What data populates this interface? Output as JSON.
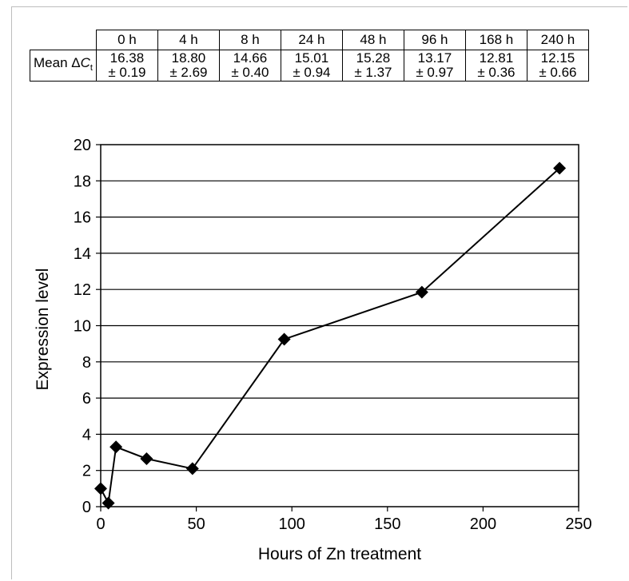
{
  "table": {
    "row_label_text": "Mean Δ",
    "row_label_var": "C",
    "row_label_sub": "t",
    "headers": [
      "0 h",
      "4 h",
      "8 h",
      "24 h",
      "48 h",
      "96 h",
      "168 h",
      "240 h"
    ],
    "means": [
      "16.38",
      "18.80",
      "14.66",
      "15.01",
      "15.28",
      "13.17",
      "12.81",
      "12.15"
    ],
    "sds": [
      "± 0.19",
      "± 2.69",
      "± 0.40",
      "± 0.94",
      "± 1.37",
      "± 0.97",
      "± 0.36",
      "± 0.66"
    ]
  },
  "chart_data": {
    "type": "line",
    "xlabel": "Hours of Zn treatment",
    "ylabel": "Expression level",
    "xlim": [
      0,
      250
    ],
    "ylim": [
      0,
      20
    ],
    "xticks": [
      0,
      50,
      100,
      150,
      200,
      250
    ],
    "yticks": [
      0,
      2,
      4,
      6,
      8,
      10,
      12,
      14,
      16,
      18,
      20
    ],
    "grid": "horizontal",
    "marker": "diamond",
    "series": [
      {
        "x": [
          0,
          4,
          8,
          24,
          48,
          96,
          168,
          240
        ],
        "y": [
          1.0,
          0.2,
          3.3,
          2.65,
          2.1,
          9.25,
          11.85,
          18.7
        ]
      }
    ]
  }
}
